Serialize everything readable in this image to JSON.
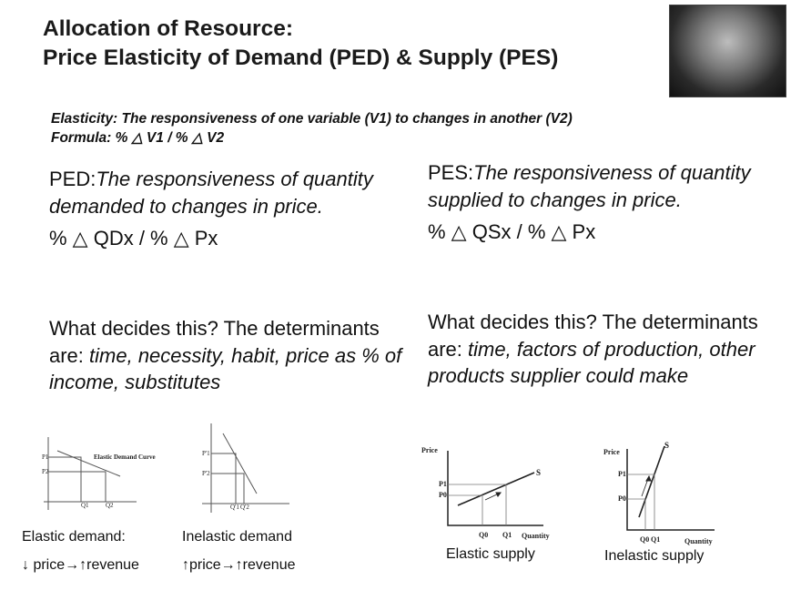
{
  "title": {
    "line1": "Allocation of Resource:",
    "line2": "Price Elasticity of Demand (PED) & Supply (PES)"
  },
  "definition": {
    "line1": "Elasticity: The responsiveness of one variable (V1) to changes in another (V2)",
    "line2": "Formula: % △ V1 /  % △ V2"
  },
  "ped": {
    "label": "PED:",
    "text": "The responsiveness of quantity demanded to changes in price.",
    "formula": "% △ QDx /  % △ Px",
    "det_prefix": "What decides this?  The determinants are: ",
    "det_italic": "time, necessity, habit, price as % of income, substitutes"
  },
  "pes": {
    "label": "PES:",
    "text": "The responsiveness of quantity supplied to changes in price.",
    "formula": "% △ QSx /  % △ Px",
    "det_prefix": "What decides this?  The determinants are: ",
    "det_italic": "time, factors of production, other products supplier could make"
  },
  "graphs": {
    "elastic_demand": {
      "curve_label": "Elastic Demand Curve",
      "p1": "P1",
      "p2": "P2",
      "q1": "Q1",
      "q2": "Q2",
      "caption": "Elastic demand:",
      "effect": "↓ price→↑revenue"
    },
    "inelastic_demand": {
      "p1": "P'1",
      "p2": "P'2",
      "q1": "Q'1",
      "q2": "Q'2",
      "caption": "Inelastic demand",
      "effect": "↑price→↑revenue"
    },
    "elastic_supply": {
      "y": "Price",
      "x": "Quantity",
      "s": "S",
      "p1": "P1",
      "p0": "P0",
      "q0": "Q0",
      "q1": "Q1",
      "caption": "Elastic supply"
    },
    "inelastic_supply": {
      "y": "Price",
      "x": "Quantity",
      "s": "S",
      "p1": "P1",
      "p0": "P0",
      "q0": "Q0",
      "q1": "Q1",
      "caption": "Inelastic supply"
    }
  }
}
